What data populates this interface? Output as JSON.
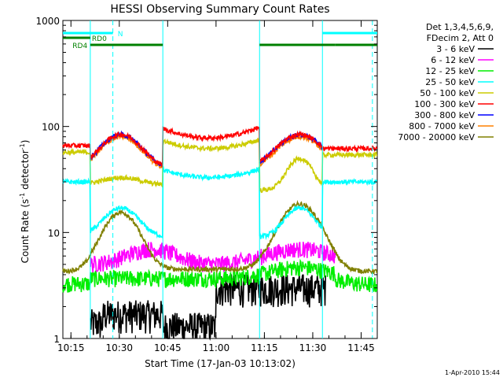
{
  "chart_data": {
    "type": "line",
    "title": "HESSI Observing Summary Count Rates",
    "xlabel": "Start Time (17-Jan-03 10:13:02)",
    "ylabel_main": "Count Rate (s",
    "ylabel_sup1": "-1",
    "ylabel_mid": " detector",
    "ylabel_sup2": "-1",
    "ylabel_end": ")",
    "yscale": "log",
    "xlim_min": [
      12.5,
      110
    ],
    "ylim": [
      1,
      1000
    ],
    "x_ticks": [
      {
        "value": 15,
        "label": "10:15"
      },
      {
        "value": 30,
        "label": "10:30"
      },
      {
        "value": 45,
        "label": "10:45"
      },
      {
        "value": 60,
        "label": "11:00"
      },
      {
        "value": 75,
        "label": "11:15"
      },
      {
        "value": 90,
        "label": "11:30"
      },
      {
        "value": 105,
        "label": "11:45"
      }
    ],
    "y_ticks": [
      {
        "value": 1,
        "label": "1"
      },
      {
        "value": 10,
        "label": "10"
      },
      {
        "value": 100,
        "label": "100"
      },
      {
        "value": 1000,
        "label": "1000"
      }
    ],
    "legend_header": [
      "Det 1,3,4,5,6,9,",
      "FDecim 2, Att 0"
    ],
    "legend_placement": "right",
    "series": [
      {
        "name": "3 - 6 keV",
        "color": "#000000"
      },
      {
        "name": "6 - 12 keV",
        "color": "#ff00ff"
      },
      {
        "name": "12 - 25 keV",
        "color": "#00ee00"
      },
      {
        "name": "25 - 50 keV",
        "color": "#00ffff"
      },
      {
        "name": "50 - 100 keV",
        "color": "#cccc00"
      },
      {
        "name": "100 - 300 keV",
        "color": "#ff0000"
      },
      {
        "name": "300 - 800 keV",
        "color": "#0000ff"
      },
      {
        "name": "800 - 7000 keV",
        "color": "#ff8000"
      },
      {
        "name": "7000 - 20000 keV",
        "color": "#808000"
      }
    ],
    "flag_bars": [
      {
        "label": "N",
        "color": "#00ffff",
        "segments": [
          [
            12.5,
            28
          ],
          [
            93,
            110
          ]
        ]
      },
      {
        "label": "RD0",
        "color": "#008000",
        "segments": [
          [
            12.5,
            21
          ],
          [
            110,
            110
          ]
        ]
      },
      {
        "label": "RD4",
        "color": "#008000",
        "segments": [
          [
            21,
            43.5
          ],
          [
            73.5,
            97
          ],
          [
            97,
            110
          ]
        ]
      }
    ],
    "night_boundaries": [
      21,
      43.5,
      73.5,
      93
    ],
    "saa_markers": [
      28,
      108.5
    ],
    "footer_date": "1-Apr-2010 15:44"
  }
}
